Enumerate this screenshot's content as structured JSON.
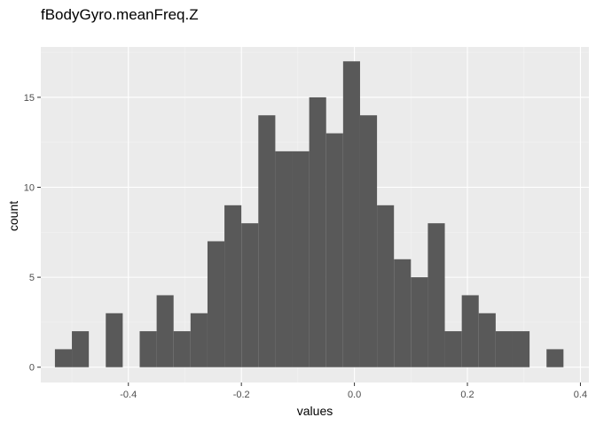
{
  "chart_data": {
    "type": "bar",
    "title": "fBodyGyro.meanFreq.Z",
    "xlabel": "values",
    "ylabel": "count",
    "xlim": [
      -0.555,
      0.415
    ],
    "ylim": [
      -0.85,
      17.8
    ],
    "x_ticks": [
      -0.4,
      -0.2,
      0.0,
      0.2,
      0.4
    ],
    "x_tick_labels": [
      "-0.4",
      "-0.2",
      "0.0",
      "0.2",
      "0.4"
    ],
    "y_ticks": [
      0,
      5,
      10,
      15
    ],
    "y_tick_labels": [
      "0",
      "5",
      "10",
      "15"
    ],
    "bin_width": 0.03,
    "bins": [
      {
        "xmin": -0.53,
        "xmax": -0.5,
        "count": 1
      },
      {
        "xmin": -0.5,
        "xmax": -0.47,
        "count": 2
      },
      {
        "xmin": -0.47,
        "xmax": -0.44,
        "count": 0
      },
      {
        "xmin": -0.44,
        "xmax": -0.41,
        "count": 3
      },
      {
        "xmin": -0.41,
        "xmax": -0.38,
        "count": 0
      },
      {
        "xmin": -0.38,
        "xmax": -0.35,
        "count": 2
      },
      {
        "xmin": -0.35,
        "xmax": -0.32,
        "count": 4
      },
      {
        "xmin": -0.32,
        "xmax": -0.29,
        "count": 2
      },
      {
        "xmin": -0.29,
        "xmax": -0.26,
        "count": 3
      },
      {
        "xmin": -0.26,
        "xmax": -0.23,
        "count": 7
      },
      {
        "xmin": -0.23,
        "xmax": -0.2,
        "count": 9
      },
      {
        "xmin": -0.2,
        "xmax": -0.17,
        "count": 8
      },
      {
        "xmin": -0.17,
        "xmax": -0.14,
        "count": 14
      },
      {
        "xmin": -0.14,
        "xmax": -0.11,
        "count": 12
      },
      {
        "xmin": -0.11,
        "xmax": -0.08,
        "count": 12
      },
      {
        "xmin": -0.08,
        "xmax": -0.05,
        "count": 15
      },
      {
        "xmin": -0.05,
        "xmax": -0.02,
        "count": 13
      },
      {
        "xmin": -0.02,
        "xmax": 0.01,
        "count": 17
      },
      {
        "xmin": 0.01,
        "xmax": 0.04,
        "count": 14
      },
      {
        "xmin": 0.04,
        "xmax": 0.07,
        "count": 9
      },
      {
        "xmin": 0.07,
        "xmax": 0.1,
        "count": 6
      },
      {
        "xmin": 0.1,
        "xmax": 0.13,
        "count": 5
      },
      {
        "xmin": 0.13,
        "xmax": 0.16,
        "count": 8
      },
      {
        "xmin": 0.16,
        "xmax": 0.19,
        "count": 2
      },
      {
        "xmin": 0.19,
        "xmax": 0.22,
        "count": 4
      },
      {
        "xmin": 0.22,
        "xmax": 0.25,
        "count": 3
      },
      {
        "xmin": 0.25,
        "xmax": 0.28,
        "count": 2
      },
      {
        "xmin": 0.28,
        "xmax": 0.31,
        "count": 2
      },
      {
        "xmin": 0.31,
        "xmax": 0.34,
        "count": 0
      },
      {
        "xmin": 0.34,
        "xmax": 0.37,
        "count": 1
      }
    ],
    "grid": true,
    "colors": {
      "bar": "#595959",
      "panel_background": "#ebebeb",
      "grid_major": "#ffffff",
      "grid_minor": "#f4f4f4",
      "tick_mark": "#333333"
    }
  }
}
